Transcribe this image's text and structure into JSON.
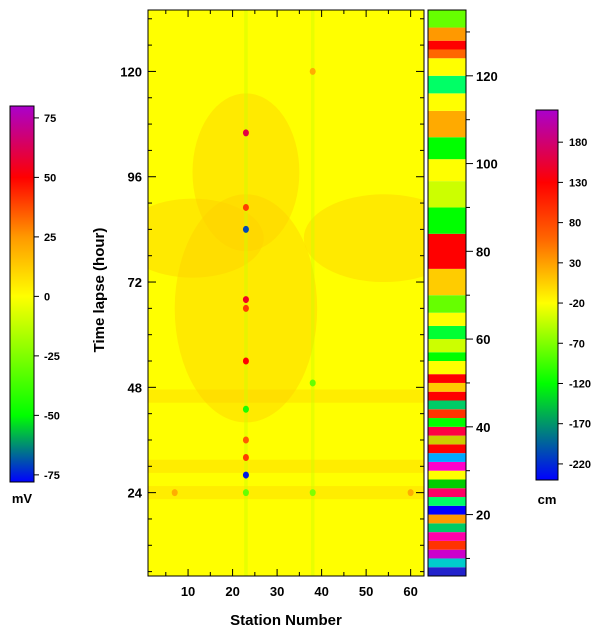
{
  "chart_data": {
    "type": "heatmap",
    "xlabel": "Station Number",
    "ylabel": "Time lapse (hour)",
    "x_range": [
      1,
      63
    ],
    "y_range": [
      5,
      134
    ],
    "x_ticks": [
      10,
      20,
      30,
      40,
      50,
      60
    ],
    "y_ticks": [
      24,
      48,
      72,
      96,
      120
    ],
    "background_color": "#ffff00",
    "anomalies": [
      {
        "station": 23,
        "hour": 106,
        "value": 60
      },
      {
        "station": 23,
        "hour": 89,
        "value": 40
      },
      {
        "station": 23,
        "hour": 84,
        "value": -70
      },
      {
        "station": 23,
        "hour": 68,
        "value": 55
      },
      {
        "station": 23,
        "hour": 66,
        "value": 40
      },
      {
        "station": 23,
        "hour": 54,
        "value": 50
      },
      {
        "station": 23,
        "hour": 43,
        "value": -45
      },
      {
        "station": 23,
        "hour": 36,
        "value": 35
      },
      {
        "station": 23,
        "hour": 32,
        "value": 40
      },
      {
        "station": 23,
        "hour": 28,
        "value": -75
      },
      {
        "station": 23,
        "hour": 24,
        "value": -30
      },
      {
        "station": 38,
        "hour": 120,
        "value": 20
      },
      {
        "station": 38,
        "hour": 49,
        "value": -30
      },
      {
        "station": 38,
        "hour": 24,
        "value": -25
      },
      {
        "station": 7,
        "hour": 24,
        "value": 20
      },
      {
        "station": 60,
        "hour": 24,
        "value": 20
      }
    ],
    "colorbars": [
      {
        "name": "mV-scale",
        "unit": "mV",
        "range": [
          -78,
          80
        ],
        "ticks": [
          75,
          50,
          25,
          0,
          -25,
          -50,
          -75
        ],
        "stops": [
          {
            "value": -78,
            "color": "#0000ff"
          },
          {
            "value": -50,
            "color": "#00ff00"
          },
          {
            "value": 0,
            "color": "#ffff00"
          },
          {
            "value": 25,
            "color": "#ff9900"
          },
          {
            "value": 50,
            "color": "#ff0000"
          },
          {
            "value": 80,
            "color": "#aa00cc"
          }
        ]
      },
      {
        "name": "hour-scale",
        "unit": "",
        "range": [
          6,
          135
        ],
        "ticks": [
          20,
          40,
          60,
          80,
          100,
          120
        ],
        "bands": [
          {
            "from": 6,
            "to": 8,
            "color": "#2222cc"
          },
          {
            "from": 8,
            "to": 10,
            "color": "#00cccc"
          },
          {
            "from": 10,
            "to": 12,
            "color": "#cc00cc"
          },
          {
            "from": 12,
            "to": 14,
            "color": "#ff3300"
          },
          {
            "from": 14,
            "to": 16,
            "color": "#ff00aa"
          },
          {
            "from": 16,
            "to": 18,
            "color": "#00cc66"
          },
          {
            "from": 18,
            "to": 20,
            "color": "#ff9900"
          },
          {
            "from": 20,
            "to": 22,
            "color": "#0000ff"
          },
          {
            "from": 22,
            "to": 24,
            "color": "#00ff66"
          },
          {
            "from": 24,
            "to": 26,
            "color": "#ff0066"
          },
          {
            "from": 26,
            "to": 28,
            "color": "#00cc00"
          },
          {
            "from": 28,
            "to": 30,
            "color": "#ffff00"
          },
          {
            "from": 30,
            "to": 32,
            "color": "#ff00cc"
          },
          {
            "from": 32,
            "to": 34,
            "color": "#00aaff"
          },
          {
            "from": 34,
            "to": 36,
            "color": "#ff0000"
          },
          {
            "from": 36,
            "to": 38,
            "color": "#cccc00"
          },
          {
            "from": 38,
            "to": 40,
            "color": "#ff0044"
          },
          {
            "from": 40,
            "to": 42,
            "color": "#00ff00"
          },
          {
            "from": 42,
            "to": 44,
            "color": "#ff3300"
          },
          {
            "from": 44,
            "to": 46,
            "color": "#00cc66"
          },
          {
            "from": 46,
            "to": 48,
            "color": "#ff0000"
          },
          {
            "from": 48,
            "to": 50,
            "color": "#ffcc00"
          },
          {
            "from": 50,
            "to": 52,
            "color": "#ff0000"
          },
          {
            "from": 52,
            "to": 55,
            "color": "#ffff00"
          },
          {
            "from": 55,
            "to": 57,
            "color": "#00ff00"
          },
          {
            "from": 57,
            "to": 60,
            "color": "#ccff00"
          },
          {
            "from": 60,
            "to": 63,
            "color": "#00ff33"
          },
          {
            "from": 63,
            "to": 66,
            "color": "#ffff00"
          },
          {
            "from": 66,
            "to": 70,
            "color": "#66ff00"
          },
          {
            "from": 70,
            "to": 76,
            "color": "#ffcc00"
          },
          {
            "from": 76,
            "to": 84,
            "color": "#ff0000"
          },
          {
            "from": 84,
            "to": 90,
            "color": "#00ff00"
          },
          {
            "from": 90,
            "to": 96,
            "color": "#ccff00"
          },
          {
            "from": 96,
            "to": 101,
            "color": "#ffff00"
          },
          {
            "from": 101,
            "to": 106,
            "color": "#00ff00"
          },
          {
            "from": 106,
            "to": 112,
            "color": "#ffaa00"
          },
          {
            "from": 112,
            "to": 116,
            "color": "#ffff00"
          },
          {
            "from": 116,
            "to": 120,
            "color": "#00ff66"
          },
          {
            "from": 120,
            "to": 124,
            "color": "#ffff00"
          },
          {
            "from": 124,
            "to": 126,
            "color": "#ff6600"
          },
          {
            "from": 126,
            "to": 128,
            "color": "#ff0000"
          },
          {
            "from": 128,
            "to": 131,
            "color": "#ff9900"
          },
          {
            "from": 131,
            "to": 135,
            "color": "#66ff00"
          }
        ]
      },
      {
        "name": "cm-scale",
        "unit": "cm",
        "range": [
          -240,
          220
        ],
        "ticks": [
          180,
          130,
          80,
          30,
          -20,
          -70,
          -120,
          -170,
          -220
        ],
        "stops": [
          {
            "value": -240,
            "color": "#0000ff"
          },
          {
            "value": -120,
            "color": "#00ff00"
          },
          {
            "value": -20,
            "color": "#ffff00"
          },
          {
            "value": 60,
            "color": "#ff6600"
          },
          {
            "value": 130,
            "color": "#ff0000"
          },
          {
            "value": 220,
            "color": "#aa00cc"
          }
        ]
      }
    ]
  }
}
